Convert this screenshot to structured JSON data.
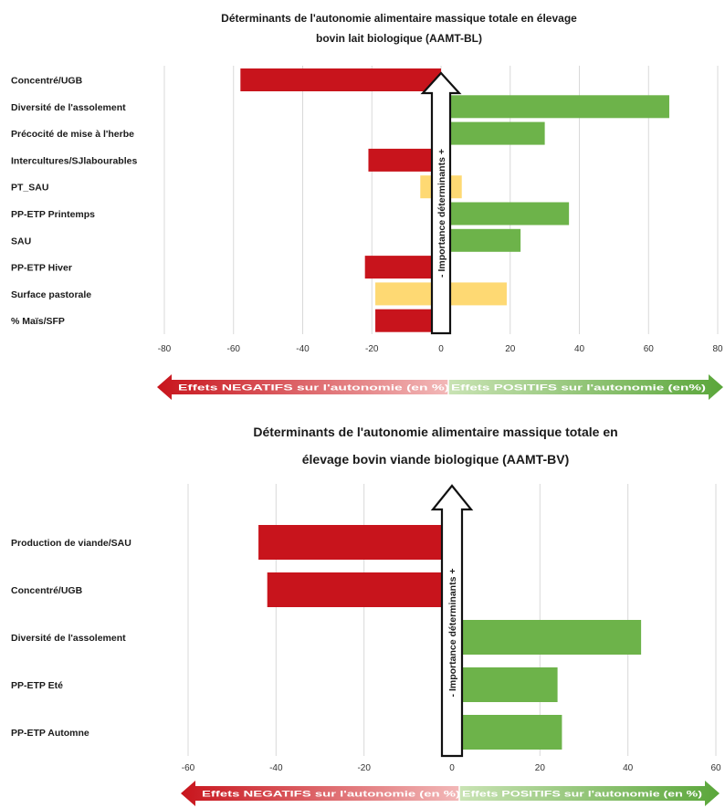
{
  "colors": {
    "negative": "#c8141c",
    "positive": "#6db34a",
    "neutral": "#fed973",
    "grid": "#d9d9d9",
    "text": "#1a1a1a"
  },
  "chart_data": [
    {
      "type": "bar",
      "orientation": "horizontal",
      "title_lines": [
        "Déterminants de l'autonomie alimentaire massique totale en élevage",
        "bovin lait biologique (AAMT-BL)"
      ],
      "categories": [
        "Concentré/UGB",
        "Diversité de l'assolement",
        "Précocité de mise à l'herbe",
        "Intercultures/SJlabourables",
        "PT_SAU",
        "PP-ETP Printemps",
        "SAU",
        "PP-ETP Hiver",
        "Surface pastorale",
        "% Maïs/SFP"
      ],
      "values": [
        -58,
        66,
        30,
        -21,
        6,
        37,
        23,
        -22,
        19,
        -19
      ],
      "neutral_ranges": [
        null,
        null,
        null,
        null,
        [
          -6,
          6
        ],
        null,
        null,
        null,
        [
          -19,
          19
        ],
        null
      ],
      "xlim": [
        -80,
        80
      ],
      "xticks": [
        "-80",
        "-60",
        "-40",
        "-20",
        "0",
        "20",
        "40",
        "60",
        "80"
      ],
      "arrow_label": "-   Importance   déterminants   +",
      "neg_banner": "Effets NEGATIFS sur l'autonomie (en %)",
      "pos_banner": "Effets POSITIFS sur l'autonomie (en%)"
    },
    {
      "type": "bar",
      "orientation": "horizontal",
      "title_lines": [
        "Déterminants de l'autonomie alimentaire massique totale en",
        "élevage bovin viande biologique (AAMT-BV)"
      ],
      "categories": [
        "Production de viande/SAU",
        "Concentré/UGB",
        "Diversité de l'assolement",
        "PP-ETP Eté",
        "PP-ETP Automne"
      ],
      "values": [
        -44,
        -42,
        43,
        24,
        25
      ],
      "neutral_ranges": [
        null,
        null,
        null,
        null,
        null
      ],
      "xlim": [
        -60,
        60
      ],
      "xticks": [
        "-60",
        "-40",
        "-20",
        "0",
        "20",
        "40",
        "60"
      ],
      "arrow_label": "-   Importance   déterminants   +",
      "neg_banner": "Effets NEGATIFS sur l'autonomie (en %)",
      "pos_banner": "Effets POSITIFS sur l'autonomie (en %)"
    }
  ]
}
